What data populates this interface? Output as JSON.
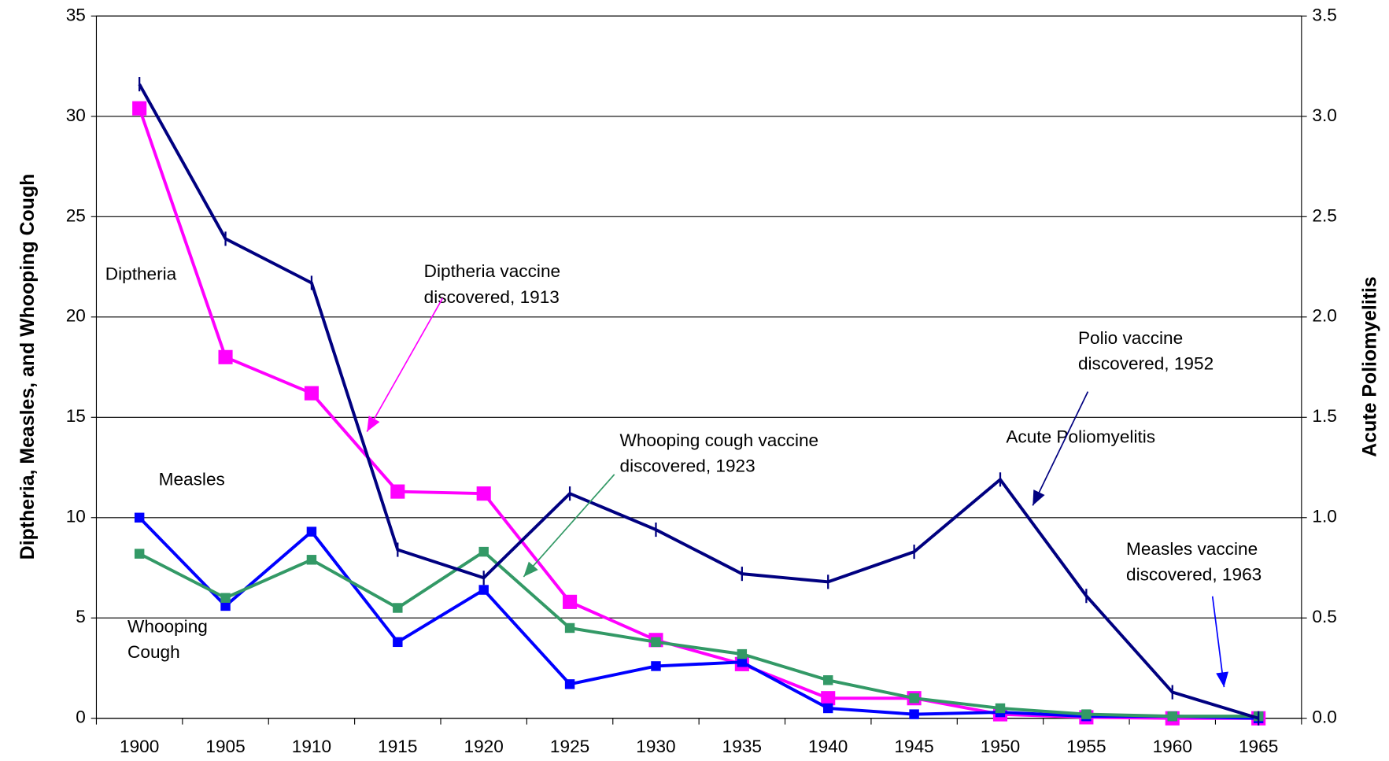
{
  "chart_data": {
    "type": "line",
    "categories": [
      "1900",
      "1905",
      "1910",
      "1915",
      "1920",
      "1925",
      "1930",
      "1935",
      "1940",
      "1945",
      "1950",
      "1955",
      "1960",
      "1965"
    ],
    "y_label": "Diptheria, Measles, and Whooping Cough",
    "y2_label": "Acute Poliomyelitis",
    "ylim": [
      0,
      35
    ],
    "yticks": [
      0,
      5,
      10,
      15,
      20,
      25,
      30,
      35
    ],
    "y2lim": [
      0,
      3.5
    ],
    "y2ticks": [
      {
        "value": 0,
        "label": "0.0"
      },
      {
        "value": 0.5,
        "label": "0.5"
      },
      {
        "value": 1,
        "label": "1.0"
      },
      {
        "value": 1.5,
        "label": "1.5"
      },
      {
        "value": 2,
        "label": "2.0"
      },
      {
        "value": 2.5,
        "label": "2.5"
      },
      {
        "value": 3,
        "label": "3.0"
      },
      {
        "value": 3.5,
        "label": "3.5"
      }
    ],
    "grid": true,
    "series": [
      {
        "color": "#ff00ff",
        "marker": "square-large",
        "values": [
          30.4,
          18.0,
          16.2,
          11.3,
          11.2,
          5.8,
          3.9,
          2.7,
          1.0,
          1.0,
          0.2,
          0.05,
          0.0,
          0.0
        ]
      },
      {
        "color": "#0000ff",
        "marker": "square",
        "values": [
          10.0,
          5.6,
          9.3,
          3.8,
          6.4,
          1.7,
          2.6,
          2.8,
          0.5,
          0.2,
          0.3,
          0.1,
          0.1,
          0.0
        ]
      },
      {
        "color": "#339966",
        "marker": "square",
        "values": [
          8.2,
          6.0,
          7.9,
          5.5,
          8.3,
          4.5,
          3.8,
          3.2,
          1.9,
          1.0,
          0.5,
          0.2,
          0.1,
          0.1
        ]
      },
      {
        "color": "#000080",
        "marker": "tick",
        "axis": "y2",
        "values": [
          3.16,
          2.39,
          2.17,
          0.84,
          0.7,
          1.12,
          0.94,
          0.72,
          0.68,
          0.83,
          1.19,
          0.61,
          0.13,
          0.0
        ]
      }
    ],
    "annotations": [
      {
        "text": [
          "Diptheria"
        ]
      },
      {
        "text": [
          "Measles"
        ]
      },
      {
        "text": [
          "Whooping",
          "Cough"
        ]
      },
      {
        "text": [
          "Acute Poliomyelitis"
        ]
      },
      {
        "text": [
          "Diptheria vaccine",
          "discovered, 1913"
        ],
        "color": "#ff00ff"
      },
      {
        "text": [
          "Whooping cough vaccine",
          "discovered, 1923"
        ],
        "color": "#339966"
      },
      {
        "text": [
          "Polio vaccine",
          "discovered, 1952"
        ],
        "color": "#000080"
      },
      {
        "text": [
          "Measles vaccine",
          "discovered, 1963"
        ],
        "color": "#0000ff"
      }
    ]
  }
}
